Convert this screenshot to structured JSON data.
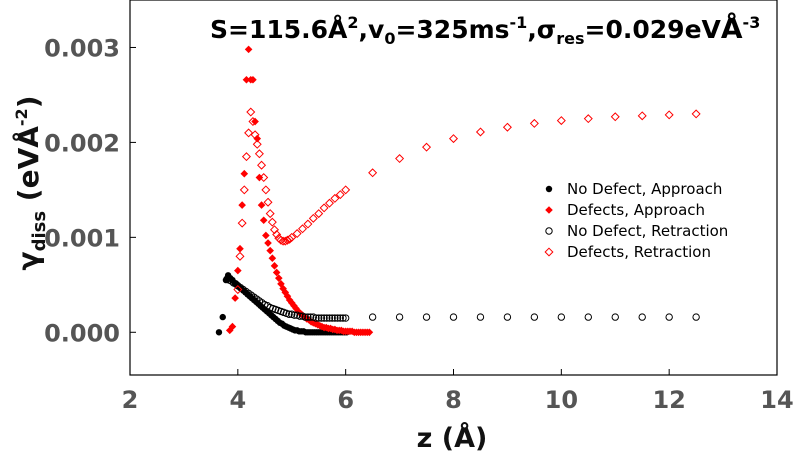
{
  "chart_data": {
    "type": "scatter",
    "title": {
      "s_label": "S=115.6Å",
      "s_exp": "2",
      "v_label": ",v",
      "v_sub": "0",
      "v_value": "=325ms",
      "v_exp": "-1",
      "sigma_label": ",σ",
      "sigma_sub": "res",
      "sigma_value": "=0.029eV",
      "sigma_unit": "Å",
      "sigma_exp": "-3"
    },
    "xlabel": "z (Å)",
    "ylabel": {
      "main": "γ",
      "sub": "diss",
      "unit_open": " (eVÅ",
      "unit_exp": "-2",
      "unit_close": ")"
    },
    "xlim": [
      2,
      14
    ],
    "ylim": [
      -0.00045,
      0.0035
    ],
    "xticks": [
      "2",
      "4",
      "6",
      "8",
      "10",
      "12",
      "14"
    ],
    "yticks": [
      "0.000",
      "0.001",
      "0.002",
      "0.003"
    ],
    "grid": false,
    "legend_position": "right",
    "series": [
      {
        "name": "No Defect, Approach",
        "color": "#000000",
        "marker": "filled-circle",
        "x": [
          3.65,
          3.72,
          3.78,
          3.82,
          3.86,
          3.9,
          3.94,
          3.98,
          4.02,
          4.06,
          4.1,
          4.14,
          4.18,
          4.22,
          4.26,
          4.3,
          4.34,
          4.38,
          4.42,
          4.46,
          4.5,
          4.54,
          4.58,
          4.62,
          4.66,
          4.7,
          4.74,
          4.78,
          4.82,
          4.86,
          4.9,
          4.94,
          4.98,
          5.02,
          5.06,
          5.1,
          5.14,
          5.18,
          5.22,
          5.26,
          5.3,
          5.34,
          5.38,
          5.42,
          5.46,
          5.5,
          5.54,
          5.58,
          5.62,
          5.66,
          5.7,
          5.74,
          5.78,
          5.82,
          5.86,
          5.9,
          5.94,
          5.98,
          6.02
        ],
        "y": [
          0.0,
          0.00016,
          0.00055,
          0.0006,
          0.00057,
          0.00055,
          0.00052,
          0.0005,
          0.00048,
          0.00046,
          0.00044,
          0.00042,
          0.0004,
          0.00038,
          0.00036,
          0.00034,
          0.00032,
          0.0003,
          0.00028,
          0.00026,
          0.00024,
          0.00022,
          0.0002,
          0.00018,
          0.00016,
          0.00014,
          0.00012,
          0.0001,
          9e-05,
          7e-05,
          6e-05,
          5e-05,
          4e-05,
          3e-05,
          2e-05,
          2e-05,
          1e-05,
          1e-05,
          1e-05,
          0.0,
          0.0,
          0.0,
          0.0,
          0.0,
          0.0,
          0.0,
          0.0,
          0.0,
          0.0,
          0.0,
          0.0,
          0.0,
          0.0,
          0.0,
          0.0,
          0.0,
          0.0,
          0.0,
          0.0
        ]
      },
      {
        "name": "Defects, Approach",
        "color": "#ff0000",
        "marker": "filled-diamond",
        "x": [
          3.85,
          3.9,
          3.95,
          4.0,
          4.04,
          4.08,
          4.12,
          4.16,
          4.2,
          4.24,
          4.28,
          4.32,
          4.36,
          4.4,
          4.44,
          4.48,
          4.52,
          4.56,
          4.6,
          4.64,
          4.68,
          4.72,
          4.76,
          4.8,
          4.84,
          4.88,
          4.92,
          4.96,
          5.0,
          5.04,
          5.08,
          5.12,
          5.16,
          5.2,
          5.24,
          5.28,
          5.32,
          5.36,
          5.4,
          5.44,
          5.48,
          5.52,
          5.56,
          5.6,
          5.64,
          5.68,
          5.72,
          5.76,
          5.8,
          5.84,
          5.88,
          5.92,
          5.96,
          6.0,
          6.04,
          6.08,
          6.12,
          6.16,
          6.2,
          6.24,
          6.28,
          6.32,
          6.36,
          6.4,
          6.44
        ],
        "y": [
          2e-05,
          6e-05,
          0.00036,
          0.00065,
          0.00088,
          0.00134,
          0.00167,
          0.00266,
          0.00298,
          0.00266,
          0.00266,
          0.00222,
          0.00204,
          0.00163,
          0.00134,
          0.00118,
          0.00102,
          0.00094,
          0.00086,
          0.00078,
          0.0007,
          0.00063,
          0.00057,
          0.00051,
          0.00046,
          0.00042,
          0.00038,
          0.00034,
          0.00031,
          0.00028,
          0.00025,
          0.00022,
          0.0002,
          0.00018,
          0.00016,
          0.00014,
          0.00013,
          0.00011,
          0.0001,
          9e-05,
          8e-05,
          7e-05,
          6e-05,
          5e-05,
          5e-05,
          4e-05,
          4e-05,
          3e-05,
          3e-05,
          2e-05,
          2e-05,
          2e-05,
          1e-05,
          1e-05,
          1e-05,
          1e-05,
          1e-05,
          0.0,
          0.0,
          0.0,
          0.0,
          0.0,
          0.0,
          0.0,
          0.0
        ]
      },
      {
        "name": "No Defect, Retraction",
        "color": "#000000",
        "marker": "open-circle",
        "x": [
          3.8,
          3.84,
          3.88,
          3.92,
          3.96,
          4.0,
          4.05,
          4.1,
          4.15,
          4.2,
          4.25,
          4.3,
          4.35,
          4.4,
          4.45,
          4.5,
          4.55,
          4.6,
          4.65,
          4.7,
          4.75,
          4.8,
          4.85,
          4.9,
          4.95,
          5.0,
          5.05,
          5.1,
          5.15,
          5.2,
          5.25,
          5.3,
          5.35,
          5.4,
          5.45,
          5.5,
          5.55,
          5.6,
          5.65,
          5.7,
          5.75,
          5.8,
          5.85,
          5.9,
          5.95,
          6.0,
          6.5,
          7.0,
          7.5,
          8.0,
          8.5,
          9.0,
          9.5,
          10.0,
          10.5,
          11.0,
          11.5,
          12.0,
          12.5
        ],
        "y": [
          0.00056,
          0.00055,
          0.00054,
          0.00052,
          0.00051,
          0.00049,
          0.00047,
          0.00045,
          0.00043,
          0.00041,
          0.00039,
          0.00037,
          0.00035,
          0.00033,
          0.00031,
          0.00029,
          0.00028,
          0.00026,
          0.00025,
          0.00024,
          0.00023,
          0.00022,
          0.00021,
          0.0002,
          0.00019,
          0.00019,
          0.00018,
          0.00018,
          0.00017,
          0.00017,
          0.00016,
          0.00016,
          0.00016,
          0.00016,
          0.00015,
          0.00015,
          0.00015,
          0.00015,
          0.00015,
          0.00015,
          0.00015,
          0.00015,
          0.00015,
          0.00015,
          0.00015,
          0.00015,
          0.00016,
          0.00016,
          0.00016,
          0.00016,
          0.00016,
          0.00016,
          0.00016,
          0.00016,
          0.00016,
          0.00016,
          0.00016,
          0.00016,
          0.00016
        ]
      },
      {
        "name": "Defects, Retraction",
        "color": "#ff0000",
        "marker": "open-diamond",
        "x": [
          4.0,
          4.04,
          4.08,
          4.12,
          4.16,
          4.2,
          4.24,
          4.28,
          4.32,
          4.36,
          4.4,
          4.44,
          4.48,
          4.52,
          4.56,
          4.6,
          4.64,
          4.68,
          4.72,
          4.76,
          4.8,
          4.84,
          4.88,
          4.92,
          4.96,
          5.0,
          5.1,
          5.2,
          5.3,
          5.4,
          5.5,
          5.6,
          5.7,
          5.8,
          5.9,
          6.0,
          6.5,
          7.0,
          7.5,
          8.0,
          8.5,
          9.0,
          9.5,
          10.0,
          10.5,
          11.0,
          11.5,
          12.0,
          12.5
        ],
        "y": [
          0.00045,
          0.0008,
          0.00115,
          0.0015,
          0.00185,
          0.0021,
          0.00232,
          0.00222,
          0.00208,
          0.00198,
          0.00188,
          0.00176,
          0.00163,
          0.0015,
          0.00137,
          0.00125,
          0.00116,
          0.00108,
          0.00103,
          0.00099,
          0.00097,
          0.00096,
          0.00096,
          0.00097,
          0.00098,
          0.001,
          0.00104,
          0.00109,
          0.00114,
          0.0012,
          0.00125,
          0.00131,
          0.00136,
          0.00141,
          0.00145,
          0.0015,
          0.00168,
          0.00183,
          0.00195,
          0.00204,
          0.00211,
          0.00216,
          0.0022,
          0.00223,
          0.00225,
          0.00227,
          0.00228,
          0.00229,
          0.0023
        ]
      }
    ]
  }
}
